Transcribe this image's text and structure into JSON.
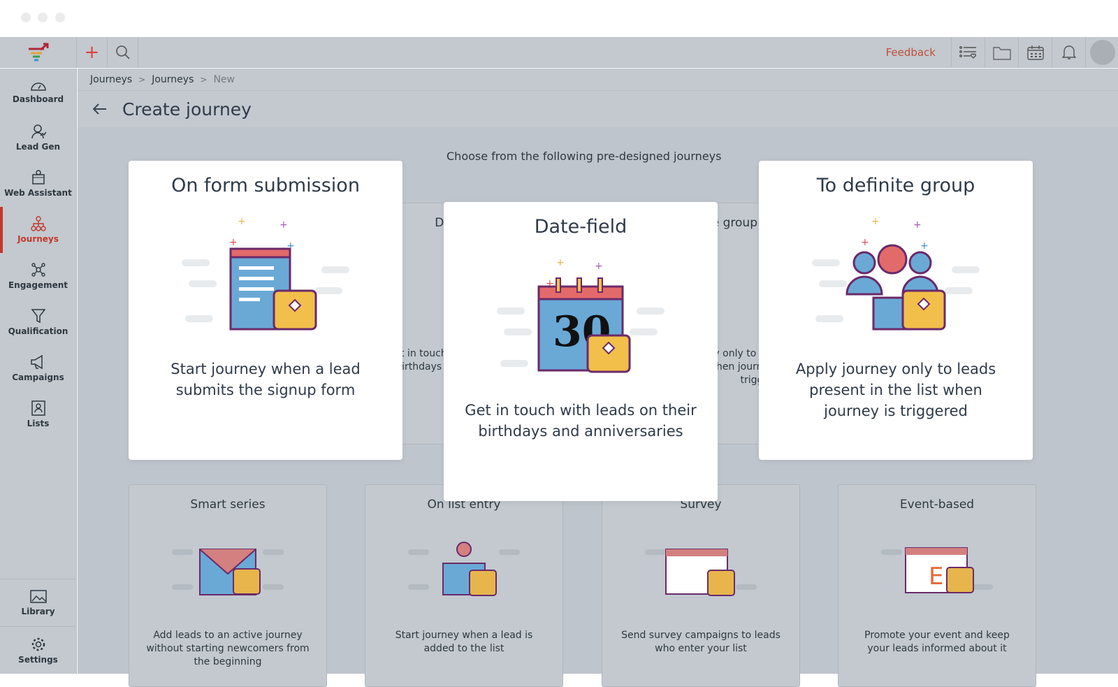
{
  "topbar": {
    "feedback": "Feedback",
    "icons": [
      "add-icon",
      "search-icon",
      "list-heart-icon",
      "folder-icon",
      "calendar-icon",
      "bell-icon",
      "avatar"
    ]
  },
  "sidebar": {
    "items": [
      {
        "label": "Dashboard"
      },
      {
        "label": "Lead Gen"
      },
      {
        "label": "Web Assistant"
      },
      {
        "label": "Journeys",
        "active": true
      },
      {
        "label": "Engagement"
      },
      {
        "label": "Qualification"
      },
      {
        "label": "Campaigns"
      },
      {
        "label": "Lists"
      }
    ],
    "bottom": [
      {
        "label": "Library"
      },
      {
        "label": "Settings"
      }
    ]
  },
  "breadcrumb": [
    "Journeys",
    "Journeys",
    "New"
  ],
  "page_title": "Create journey",
  "subtitle": "Choose from the following pre-designed journeys",
  "featured": [
    {
      "title": "On form submission",
      "desc": "Start journey when a lead submits the signup form"
    },
    {
      "title": "Date-field",
      "desc": "Get in touch with leads on their birthdays and anniversaries"
    },
    {
      "title": "To definite group",
      "desc": "Apply journey only to leads present in the list when journey is triggered"
    }
  ],
  "cards": [
    {
      "title": "Smart series",
      "desc": "Add leads to an active journey without starting newcomers from the beginning"
    },
    {
      "title": "On list entry",
      "desc": "Start journey when a lead is added to the list"
    },
    {
      "title": "Survey",
      "desc": "Send survey campaigns to leads who enter your list"
    },
    {
      "title": "Event-based",
      "desc": "Promote your event and keep your leads informed about it"
    }
  ],
  "colors": {
    "accent": "#c0392b",
    "feedback": "#c0503a"
  }
}
